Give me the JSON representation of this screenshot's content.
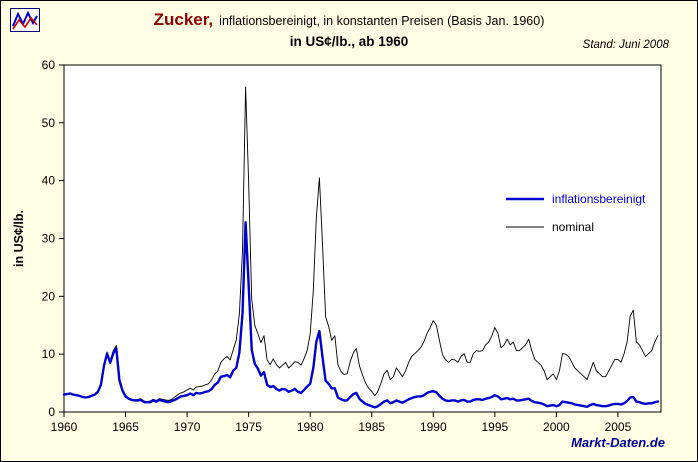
{
  "header": {
    "title_main": "Zucker,",
    "title_sub": "inflationsbereinigt, in konstanten Preisen (Basis Jan. 1960)",
    "title_line2": "in US¢/lb., ab 1960",
    "stand": "Stand: Juni 2008"
  },
  "footer": {
    "site": "Markt-Daten.de"
  },
  "colors": {
    "background": "#FFFFE6",
    "title_accent": "#8B0000",
    "site_watermark": "#000099",
    "real_series": "#0000CC",
    "nominal_series": "#000000",
    "plot_background": "#FFFFFF"
  },
  "chart_data": {
    "type": "line",
    "title": "Zucker, inflationsbereinigt, in konstanten Preisen (Basis Jan. 1960), in US¢/lb., ab 1960",
    "xlabel": "",
    "ylabel": "in US¢/lb.",
    "xlim": [
      1960,
      2008.5
    ],
    "ylim": [
      0,
      60
    ],
    "x_ticks": [
      1960,
      1965,
      1970,
      1975,
      1980,
      1985,
      1990,
      1995,
      2000,
      2005
    ],
    "y_ticks": [
      0,
      10,
      20,
      30,
      40,
      50,
      60
    ],
    "grid": false,
    "legend_position": "inside-right",
    "x_start": 1960.0,
    "x_step": 0.25,
    "series": [
      {
        "name": "inflationsbereinigt",
        "color": "#0000CC",
        "width": 2.4,
        "values": [
          3.0,
          3.1,
          3.2,
          3.0,
          2.9,
          2.8,
          2.6,
          2.5,
          2.6,
          2.8,
          3.0,
          3.5,
          4.7,
          8.0,
          10.1,
          8.5,
          10.1,
          11.0,
          5.5,
          3.7,
          2.7,
          2.3,
          2.1,
          2.0,
          2.0,
          2.1,
          1.7,
          1.7,
          1.7,
          2.0,
          1.8,
          2.1,
          1.9,
          1.8,
          1.7,
          1.9,
          2.1,
          2.4,
          2.7,
          2.8,
          2.9,
          3.2,
          2.9,
          3.3,
          3.2,
          3.3,
          3.5,
          3.6,
          4.0,
          4.7,
          5.1,
          6.1,
          6.2,
          6.4,
          6.0,
          7.2,
          7.6,
          10.3,
          17.0,
          32.8,
          22.2,
          10.8,
          8.3,
          7.5,
          6.3,
          6.9,
          4.7,
          4.3,
          4.5,
          4.0,
          3.7,
          4.0,
          3.9,
          3.5,
          3.7,
          4.0,
          3.5,
          3.3,
          3.8,
          4.4,
          4.9,
          7.6,
          12.1,
          14.0,
          9.5,
          5.4,
          4.9,
          4.1,
          4.1,
          2.5,
          2.2,
          2.0,
          2.0,
          2.6,
          3.1,
          3.3,
          2.3,
          1.8,
          1.4,
          1.2,
          1.0,
          0.8,
          1.0,
          1.4,
          1.8,
          2.0,
          1.5,
          1.7,
          2.0,
          1.8,
          1.6,
          1.9,
          2.2,
          2.4,
          2.6,
          2.7,
          2.7,
          2.9,
          3.3,
          3.5,
          3.6,
          3.4,
          2.8,
          2.3,
          2.0,
          1.9,
          2.0,
          2.0,
          1.8,
          2.0,
          2.1,
          1.8,
          1.8,
          2.1,
          2.2,
          2.2,
          2.1,
          2.3,
          2.4,
          2.6,
          2.9,
          2.7,
          2.2,
          2.3,
          2.4,
          2.2,
          2.3,
          2.0,
          2.0,
          2.1,
          2.2,
          2.3,
          1.9,
          1.7,
          1.6,
          1.5,
          1.3,
          1.0,
          1.1,
          1.2,
          1.0,
          1.2,
          1.8,
          1.7,
          1.6,
          1.5,
          1.3,
          1.2,
          1.1,
          1.0,
          0.9,
          1.2,
          1.4,
          1.2,
          1.1,
          1.0,
          1.0,
          1.1,
          1.3,
          1.4,
          1.4,
          1.3,
          1.5,
          1.9,
          2.5,
          2.6,
          1.8,
          1.7,
          1.5,
          1.4,
          1.5,
          1.5,
          1.7,
          1.8
        ]
      },
      {
        "name": "nominal",
        "color": "#000000",
        "width": 0.9,
        "values": [
          3.0,
          3.1,
          3.2,
          3.0,
          2.9,
          2.8,
          2.6,
          2.5,
          2.7,
          2.9,
          3.1,
          3.6,
          4.8,
          8.2,
          10.4,
          8.8,
          10.6,
          11.5,
          5.8,
          3.9,
          2.9,
          2.4,
          2.2,
          2.1,
          2.2,
          2.3,
          1.9,
          1.8,
          1.9,
          2.2,
          2.0,
          2.3,
          2.2,
          2.1,
          2.0,
          2.2,
          2.6,
          3.0,
          3.3,
          3.5,
          3.8,
          4.1,
          3.8,
          4.3,
          4.4,
          4.5,
          4.7,
          4.9,
          5.6,
          6.6,
          7.1,
          8.6,
          9.2,
          9.6,
          9.0,
          10.8,
          12.5,
          17.0,
          28.0,
          56.2,
          40.0,
          19.5,
          15.0,
          13.5,
          12.0,
          13.2,
          9.0,
          8.2,
          9.2,
          8.2,
          7.6,
          8.1,
          8.6,
          7.6,
          8.1,
          8.7,
          8.6,
          8.1,
          9.2,
          10.6,
          13.5,
          21.0,
          33.5,
          40.5,
          29.0,
          16.5,
          14.8,
          12.4,
          13.2,
          8.2,
          7.0,
          6.5,
          6.6,
          8.7,
          10.2,
          11.0,
          8.0,
          6.4,
          5.0,
          4.1,
          3.6,
          2.8,
          3.6,
          5.0,
          6.6,
          7.2,
          5.6,
          6.1,
          7.6,
          6.9,
          6.1,
          7.1,
          8.6,
          9.6,
          10.1,
          10.6,
          11.2,
          12.2,
          13.6,
          14.6,
          15.8,
          15.0,
          12.4,
          9.9,
          9.0,
          8.6,
          9.1,
          9.0,
          8.6,
          9.6,
          10.1,
          8.6,
          8.6,
          10.1,
          10.6,
          10.5,
          10.6,
          11.6,
          12.1,
          13.1,
          14.6,
          13.6,
          11.1,
          11.6,
          12.6,
          11.6,
          12.1,
          10.6,
          10.6,
          11.1,
          11.6,
          12.6,
          10.6,
          9.1,
          8.6,
          8.1,
          7.1,
          5.6,
          6.1,
          6.6,
          5.6,
          7.1,
          10.1,
          10.0,
          9.6,
          8.6,
          7.6,
          7.1,
          6.6,
          6.1,
          5.6,
          7.1,
          8.6,
          7.1,
          6.6,
          6.1,
          6.1,
          7.1,
          8.1,
          9.1,
          9.1,
          8.6,
          10.1,
          12.1,
          16.6,
          17.6,
          12.1,
          11.6,
          10.6,
          9.6,
          10.1,
          10.6,
          12.1,
          13.2
        ]
      }
    ]
  }
}
